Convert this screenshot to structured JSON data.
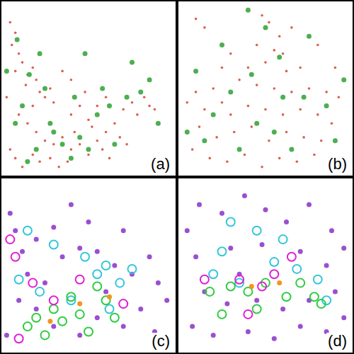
{
  "chart_data": [
    {
      "type": "scatter",
      "title": "(a)",
      "xlim": [
        0,
        100
      ],
      "ylim": [
        0,
        100
      ],
      "tick_labels": false,
      "series": [
        {
          "color": "#d9604f",
          "marker": "circle",
          "values": [
            [
              5,
              88
            ],
            [
              8,
              82
            ],
            [
              6,
              75
            ],
            [
              10,
              70
            ],
            [
              12,
              65
            ],
            [
              8,
              60
            ],
            [
              15,
              58
            ],
            [
              18,
              62
            ],
            [
              14,
              52
            ],
            [
              20,
              55
            ],
            [
              22,
              48
            ],
            [
              25,
              45
            ],
            [
              18,
              40
            ],
            [
              28,
              50
            ],
            [
              30,
              42
            ],
            [
              10,
              35
            ],
            [
              15,
              30
            ],
            [
              20,
              25
            ],
            [
              25,
              20
            ],
            [
              30,
              18
            ],
            [
              35,
              22
            ],
            [
              40,
              15
            ],
            [
              45,
              18
            ],
            [
              50,
              12
            ],
            [
              55,
              20
            ],
            [
              60,
              25
            ],
            [
              65,
              30
            ],
            [
              70,
              38
            ],
            [
              75,
              42
            ],
            [
              78,
              35
            ],
            [
              82,
              45
            ],
            [
              85,
              40
            ],
            [
              88,
              38
            ],
            [
              40,
              35
            ],
            [
              45,
              40
            ],
            [
              50,
              32
            ],
            [
              5,
              15
            ],
            [
              8,
              10
            ],
            [
              12,
              5
            ],
            [
              18,
              12
            ],
            [
              22,
              8
            ],
            [
              28,
              10
            ],
            [
              33,
              5
            ],
            [
              38,
              8
            ],
            [
              42,
              25
            ],
            [
              52,
              28
            ],
            [
              58,
              15
            ],
            [
              62,
              10
            ],
            [
              68,
              22
            ],
            [
              72,
              18
            ],
            [
              3,
              45
            ],
            [
              35,
              60
            ],
            [
              40,
              55
            ],
            [
              48,
              48
            ],
            [
              55,
              40
            ],
            [
              60,
              45
            ]
          ]
        },
        {
          "color": "#4caf50",
          "marker": "blob",
          "values": [
            [
              9,
              78
            ],
            [
              16,
              58
            ],
            [
              25,
              50
            ],
            [
              12,
              40
            ],
            [
              28,
              30
            ],
            [
              35,
              18
            ],
            [
              45,
              22
            ],
            [
              55,
              35
            ],
            [
              62,
              40
            ],
            [
              72,
              45
            ],
            [
              80,
              48
            ],
            [
              50,
              15
            ],
            [
              20,
              15
            ],
            [
              15,
              8
            ],
            [
              40,
              10
            ],
            [
              30,
              25
            ],
            [
              65,
              18
            ],
            [
              8,
              30
            ],
            [
              42,
              45
            ],
            [
              58,
              50
            ],
            [
              90,
              30
            ],
            [
              75,
              65
            ],
            [
              85,
              55
            ],
            [
              48,
              70
            ],
            [
              3,
              60
            ],
            [
              22,
              70
            ]
          ]
        }
      ]
    },
    {
      "type": "scatter",
      "title": "(b)",
      "xlim": [
        0,
        100
      ],
      "ylim": [
        0,
        100
      ],
      "tick_labels": false,
      "series": [
        {
          "color": "#d9604f",
          "marker": "circle",
          "values": [
            [
              10,
              90
            ],
            [
              15,
              85
            ],
            [
              48,
              92
            ],
            [
              52,
              88
            ],
            [
              58,
              80
            ],
            [
              45,
              75
            ],
            [
              55,
              72
            ],
            [
              60,
              70
            ],
            [
              50,
              65
            ],
            [
              40,
              62
            ],
            [
              62,
              60
            ],
            [
              70,
              62
            ],
            [
              35,
              55
            ],
            [
              45,
              52
            ],
            [
              55,
              50
            ],
            [
              65,
              48
            ],
            [
              75,
              50
            ],
            [
              85,
              48
            ],
            [
              92,
              45
            ],
            [
              20,
              50
            ],
            [
              10,
              48
            ],
            [
              5,
              42
            ],
            [
              15,
              38
            ],
            [
              25,
              42
            ],
            [
              30,
              35
            ],
            [
              40,
              40
            ],
            [
              50,
              38
            ],
            [
              60,
              35
            ],
            [
              70,
              38
            ],
            [
              80,
              35
            ],
            [
              88,
              30
            ],
            [
              12,
              28
            ],
            [
              22,
              22
            ],
            [
              32,
              25
            ],
            [
              42,
              28
            ],
            [
              52,
              20
            ],
            [
              62,
              25
            ],
            [
              72,
              22
            ],
            [
              82,
              20
            ],
            [
              8,
              15
            ],
            [
              18,
              10
            ],
            [
              28,
              8
            ],
            [
              38,
              12
            ],
            [
              48,
              5
            ],
            [
              58,
              10
            ],
            [
              68,
              8
            ],
            [
              78,
              12
            ],
            [
              30,
              70
            ],
            [
              25,
              62
            ],
            [
              65,
              85
            ],
            [
              80,
              75
            ],
            [
              90,
              62
            ]
          ]
        },
        {
          "color": "#4caf50",
          "marker": "blob",
          "values": [
            [
              50,
              85
            ],
            [
              58,
              68
            ],
            [
              42,
              58
            ],
            [
              30,
              48
            ],
            [
              60,
              45
            ],
            [
              72,
              45
            ],
            [
              20,
              35
            ],
            [
              45,
              30
            ],
            [
              85,
              40
            ],
            [
              15,
              20
            ],
            [
              35,
              15
            ],
            [
              65,
              15
            ],
            [
              90,
              20
            ],
            [
              10,
              60
            ],
            [
              75,
              80
            ],
            [
              55,
              25
            ],
            [
              25,
              75
            ],
            [
              95,
              55
            ],
            [
              5,
              25
            ],
            [
              40,
              95
            ]
          ]
        }
      ]
    },
    {
      "type": "scatter",
      "title": "(c)",
      "xlim": [
        0,
        100
      ],
      "ylim": [
        0,
        100
      ],
      "tick_labels": false,
      "series": [
        {
          "color": "#9b4fd0",
          "marker": "blob",
          "values": [
            [
              5,
              80
            ],
            [
              8,
              70
            ],
            [
              12,
              58
            ],
            [
              20,
              65
            ],
            [
              30,
              72
            ],
            [
              35,
              55
            ],
            [
              45,
              60
            ],
            [
              55,
              58
            ],
            [
              65,
              50
            ],
            [
              75,
              45
            ],
            [
              85,
              55
            ],
            [
              90,
              40
            ],
            [
              95,
              30
            ],
            [
              10,
              30
            ],
            [
              20,
              25
            ],
            [
              30,
              15
            ],
            [
              45,
              10
            ],
            [
              55,
              20
            ],
            [
              70,
              15
            ],
            [
              80,
              25
            ],
            [
              88,
              12
            ],
            [
              15,
              45
            ],
            [
              60,
              35
            ],
            [
              40,
              85
            ],
            [
              70,
              70
            ],
            [
              50,
              75
            ],
            [
              25,
              40
            ],
            [
              3,
              10
            ]
          ]
        },
        {
          "color": "#33c6d9",
          "marker": "ring",
          "values": [
            [
              15,
              70
            ],
            [
              30,
              62
            ],
            [
              48,
              55
            ],
            [
              60,
              50
            ],
            [
              75,
              48
            ],
            [
              22,
              35
            ],
            [
              40,
              30
            ],
            [
              62,
              25
            ],
            [
              68,
              40
            ],
            [
              10,
              42
            ],
            [
              55,
              45
            ]
          ]
        },
        {
          "color": "#2ecc40",
          "marker": "ring",
          "values": [
            [
              20,
              20
            ],
            [
              30,
              25
            ],
            [
              35,
              18
            ],
            [
              45,
              22
            ],
            [
              50,
              12
            ],
            [
              25,
              10
            ],
            [
              40,
              32
            ],
            [
              60,
              30
            ],
            [
              65,
              20
            ],
            [
              15,
              15
            ],
            [
              55,
              38
            ]
          ]
        },
        {
          "color": "#e01fd6",
          "marker": "ring",
          "values": [
            [
              5,
              65
            ],
            [
              18,
              40
            ],
            [
              45,
              42
            ],
            [
              10,
              8
            ],
            [
              70,
              28
            ],
            [
              30,
              30
            ],
            [
              8,
              55
            ]
          ]
        },
        {
          "color": "#f0961e",
          "marker": "blob",
          "values": [
            [
              28,
              18
            ],
            [
              45,
              28
            ],
            [
              62,
              32
            ]
          ]
        }
      ]
    },
    {
      "type": "scatter",
      "title": "(d)",
      "xlim": [
        0,
        100
      ],
      "ylim": [
        0,
        100
      ],
      "tick_labels": false,
      "series": [
        {
          "color": "#9b4fd0",
          "marker": "blob",
          "values": [
            [
              5,
              70
            ],
            [
              12,
              85
            ],
            [
              25,
              80
            ],
            [
              38,
              90
            ],
            [
              50,
              82
            ],
            [
              62,
              75
            ],
            [
              75,
              85
            ],
            [
              88,
              70
            ],
            [
              95,
              60
            ],
            [
              10,
              55
            ],
            [
              30,
              60
            ],
            [
              48,
              62
            ],
            [
              70,
              58
            ],
            [
              85,
              50
            ],
            [
              15,
              35
            ],
            [
              28,
              28
            ],
            [
              45,
              30
            ],
            [
              60,
              25
            ],
            [
              75,
              30
            ],
            [
              90,
              35
            ],
            [
              8,
              15
            ],
            [
              20,
              10
            ],
            [
              40,
              12
            ],
            [
              55,
              8
            ],
            [
              70,
              15
            ],
            [
              85,
              12
            ],
            [
              35,
              45
            ],
            [
              95,
              20
            ]
          ]
        },
        {
          "color": "#33c6d9",
          "marker": "ring",
          "values": [
            [
              20,
              45
            ],
            [
              35,
              40
            ],
            [
              55,
              52
            ],
            [
              68,
              48
            ],
            [
              80,
              42
            ],
            [
              45,
              70
            ],
            [
              60,
              65
            ],
            [
              25,
              58
            ],
            [
              85,
              30
            ],
            [
              30,
              75
            ]
          ]
        },
        {
          "color": "#2ecc40",
          "marker": "ring",
          "values": [
            [
              18,
              35
            ],
            [
              30,
              38
            ],
            [
              40,
              35
            ],
            [
              50,
              40
            ],
            [
              62,
              32
            ],
            [
              78,
              32
            ],
            [
              25,
              22
            ],
            [
              45,
              25
            ],
            [
              70,
              40
            ],
            [
              82,
              28
            ]
          ]
        },
        {
          "color": "#e01fd6",
          "marker": "ring",
          "values": [
            [
              35,
              42
            ],
            [
              48,
              38
            ],
            [
              55,
              45
            ],
            [
              15,
              42
            ],
            [
              65,
              55
            ],
            [
              40,
              22
            ]
          ]
        },
        {
          "color": "#f0961e",
          "marker": "blob",
          "values": [
            [
              42,
              38
            ],
            [
              58,
              40
            ]
          ]
        }
      ]
    }
  ]
}
